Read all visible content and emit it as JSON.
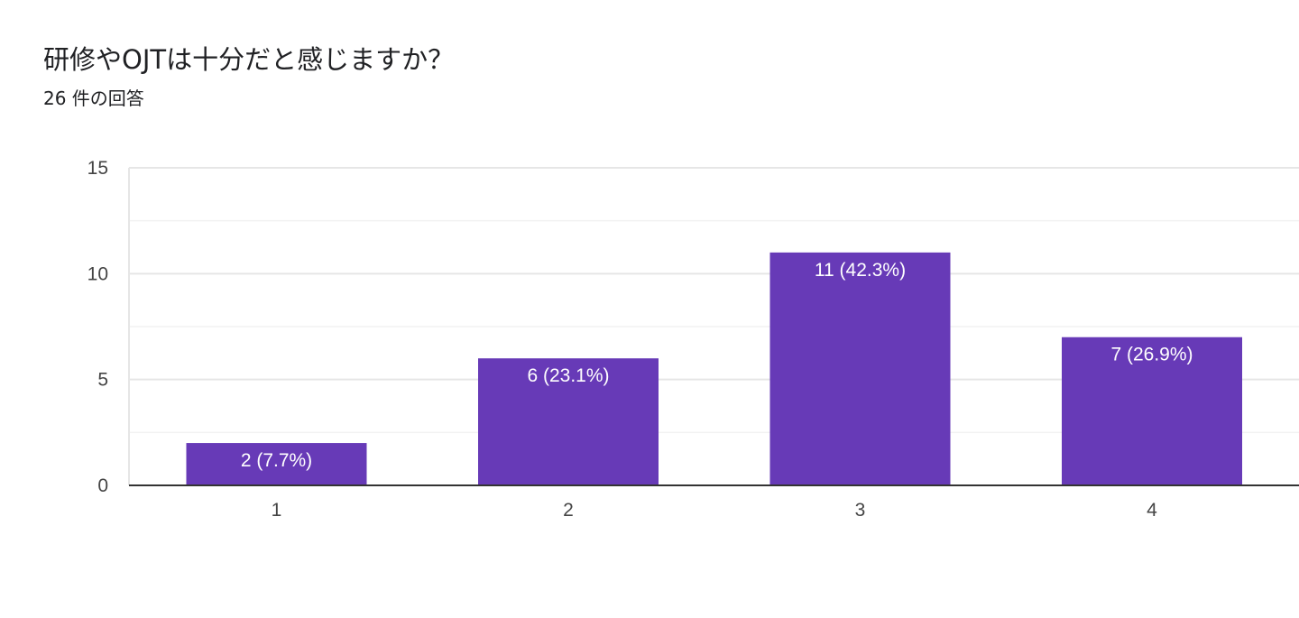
{
  "question": {
    "title": "研修やOJTは十分だと感じますか？",
    "response_count": "26 件の回答"
  },
  "colors": {
    "bar": "#673ab7",
    "grid_major": "#e6e6e6",
    "grid_minor": "#f2f2f2",
    "axis": "#333333"
  },
  "chart_data": {
    "type": "bar",
    "categories": [
      "1",
      "2",
      "3",
      "4"
    ],
    "values": [
      2,
      6,
      11,
      7
    ],
    "data_labels": [
      "2 (7.7%)",
      "6 (23.1%)",
      "11 (42.3%)",
      "7 (26.9%)"
    ],
    "title": "研修やOJTは十分だと感じますか？",
    "xlabel": "",
    "ylabel": "",
    "ylim": [
      0,
      15
    ],
    "yticks": [
      0,
      5,
      10,
      15
    ],
    "grid": true,
    "legend": "none"
  }
}
